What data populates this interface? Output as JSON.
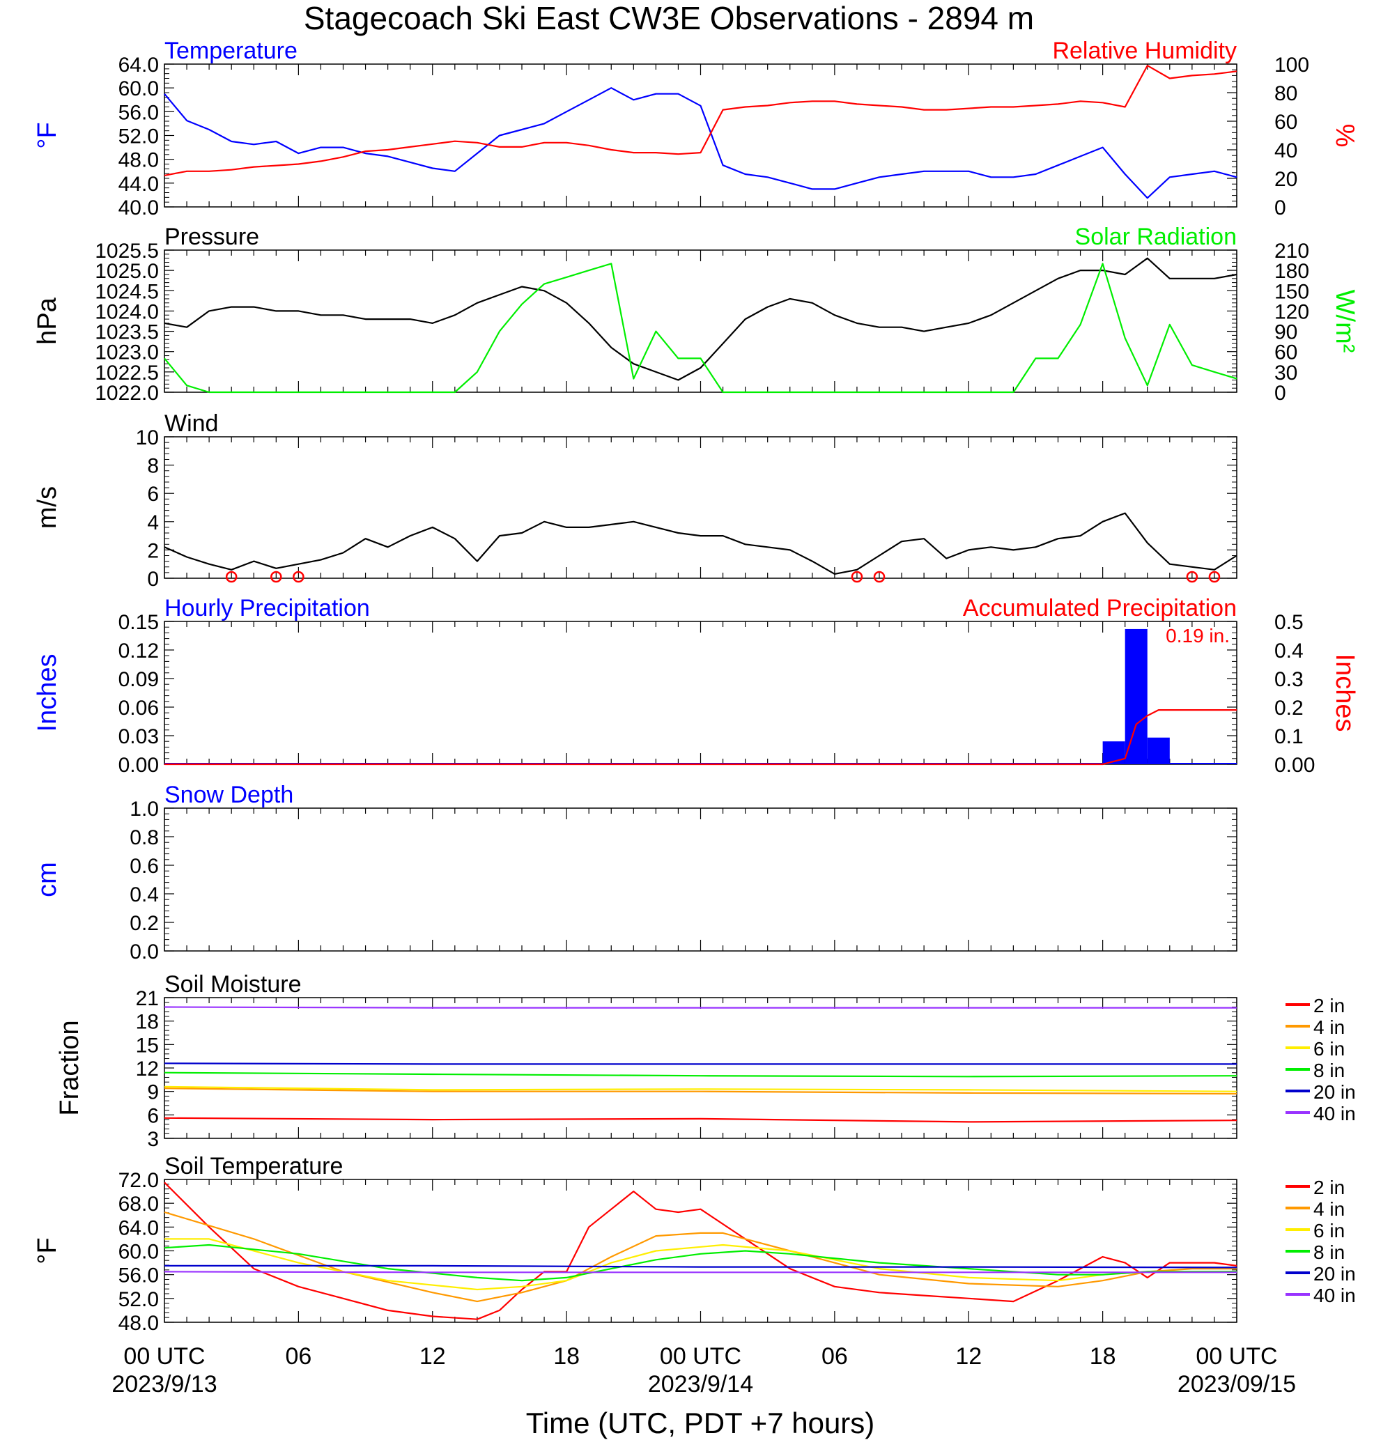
{
  "title": "Stagecoach Ski East CW3E Observations - 2894 m",
  "x_axis": {
    "label": "Time (UTC, PDT +7 hours)",
    "range_hours": [
      0,
      48
    ],
    "ticks": [
      {
        "hour": 0,
        "label": "00 UTC",
        "date": "2023/9/13"
      },
      {
        "hour": 6,
        "label": "06",
        "date": ""
      },
      {
        "hour": 12,
        "label": "12",
        "date": ""
      },
      {
        "hour": 18,
        "label": "18",
        "date": ""
      },
      {
        "hour": 24,
        "label": "00 UTC",
        "date": "2023/9/14"
      },
      {
        "hour": 30,
        "label": "06",
        "date": ""
      },
      {
        "hour": 36,
        "label": "12",
        "date": ""
      },
      {
        "hour": 42,
        "label": "18",
        "date": ""
      },
      {
        "hour": 48,
        "label": "00 UTC",
        "date": "2023/09/15"
      }
    ]
  },
  "colors": {
    "blue": "#0000ff",
    "red": "#ff0000",
    "green": "#00ee00",
    "black": "#000000",
    "orange": "#ff9900",
    "yellow": "#ffee00",
    "darkblue": "#0000cc",
    "purple": "#9933ff"
  },
  "chart_data": [
    {
      "type": "line",
      "title_left": "Temperature",
      "title_right": "Relative Humidity",
      "ylabel_left": "°F",
      "ylabel_right": "%",
      "ylim_left": [
        40,
        64
      ],
      "ylim_right": [
        0,
        100
      ],
      "ticks_left": [
        "40.0",
        "44.0",
        "48.0",
        "52.0",
        "56.0",
        "60.0",
        "64.0"
      ],
      "ticks_right": [
        "0",
        "20",
        "40",
        "60",
        "80",
        "100"
      ],
      "series": [
        {
          "name": "Temperature",
          "axis": "left",
          "color": "#0000ff",
          "x": [
            0,
            1,
            2,
            3,
            4,
            5,
            6,
            7,
            8,
            9,
            10,
            11,
            12,
            13,
            14,
            15,
            16,
            17,
            18,
            19,
            20,
            21,
            22,
            23,
            24,
            25,
            26,
            27,
            28,
            29,
            30,
            31,
            32,
            33,
            34,
            35,
            36,
            37,
            38,
            39,
            40,
            41,
            42,
            43,
            44,
            45,
            46,
            47,
            48
          ],
          "y": [
            59,
            54.5,
            53,
            51,
            50.5,
            51,
            49,
            50,
            50,
            49,
            48.5,
            47.5,
            46.5,
            46,
            49,
            52,
            53,
            54,
            56,
            58,
            60,
            58,
            59,
            59,
            57,
            47,
            45.5,
            45,
            44,
            43,
            43,
            44,
            45,
            45.5,
            46,
            46,
            46,
            45,
            45,
            45.5,
            47,
            48.5,
            50,
            45.5,
            41.5,
            45,
            45.5,
            46,
            45
          ]
        },
        {
          "name": "Relative Humidity",
          "axis": "right",
          "color": "#ff0000",
          "x": [
            0,
            1,
            2,
            3,
            4,
            5,
            6,
            7,
            8,
            9,
            10,
            11,
            12,
            13,
            14,
            15,
            16,
            17,
            18,
            19,
            20,
            21,
            22,
            23,
            24,
            25,
            26,
            27,
            28,
            29,
            30,
            31,
            32,
            33,
            34,
            35,
            36,
            37,
            38,
            39,
            40,
            41,
            42,
            43,
            44,
            45,
            46,
            47,
            48
          ],
          "y": [
            22,
            25,
            25,
            26,
            28,
            29,
            30,
            32,
            35,
            39,
            40,
            42,
            44,
            46,
            45,
            42,
            42,
            45,
            45,
            43,
            40,
            38,
            38,
            37,
            38,
            68,
            70,
            71,
            73,
            74,
            74,
            72,
            71,
            70,
            68,
            68,
            69,
            70,
            70,
            71,
            72,
            74,
            73,
            70,
            99,
            90,
            92,
            93,
            95
          ]
        }
      ]
    },
    {
      "type": "line",
      "title_left": "Pressure",
      "title_right": "Solar Radiation",
      "ylabel_left": "hPa",
      "ylabel_right": "W/m²",
      "ylim_left": [
        1022.0,
        1025.5
      ],
      "ylim_right": [
        0,
        210
      ],
      "ticks_left": [
        "1022.0",
        "1022.5",
        "1023.0",
        "1023.5",
        "1024.0",
        "1024.5",
        "1025.0",
        "1025.5"
      ],
      "ticks_right": [
        "0",
        "30",
        "60",
        "90",
        "120",
        "150",
        "180",
        "210"
      ],
      "series": [
        {
          "name": "Pressure",
          "axis": "left",
          "color": "#000000",
          "x": [
            0,
            1,
            2,
            3,
            4,
            5,
            6,
            7,
            8,
            9,
            10,
            11,
            12,
            13,
            14,
            15,
            16,
            17,
            18,
            19,
            20,
            21,
            22,
            23,
            24,
            25,
            26,
            27,
            28,
            29,
            30,
            31,
            32,
            33,
            34,
            35,
            36,
            37,
            38,
            39,
            40,
            41,
            42,
            43,
            44,
            45,
            46,
            47,
            48
          ],
          "y": [
            1023.7,
            1023.6,
            1024.0,
            1024.1,
            1024.1,
            1024.0,
            1024.0,
            1023.9,
            1023.9,
            1023.8,
            1023.8,
            1023.8,
            1023.7,
            1023.9,
            1024.2,
            1024.4,
            1024.6,
            1024.5,
            1024.2,
            1023.7,
            1023.1,
            1022.7,
            1022.5,
            1022.3,
            1022.6,
            1023.2,
            1023.8,
            1024.1,
            1024.3,
            1024.2,
            1023.9,
            1023.7,
            1023.6,
            1023.6,
            1023.5,
            1023.6,
            1023.7,
            1023.9,
            1024.2,
            1024.5,
            1024.8,
            1025.0,
            1025.0,
            1024.9,
            1025.3,
            1024.8,
            1024.8,
            1024.8,
            1024.9
          ]
        },
        {
          "name": "Solar Radiation",
          "axis": "right",
          "color": "#00ee00",
          "x": [
            0,
            1,
            2,
            3,
            4,
            5,
            6,
            7,
            8,
            9,
            10,
            11,
            12,
            13,
            14,
            15,
            16,
            17,
            18,
            19,
            20,
            21,
            22,
            23,
            24,
            25,
            26,
            27,
            28,
            29,
            30,
            31,
            32,
            33,
            34,
            35,
            36,
            37,
            38,
            39,
            40,
            41,
            42,
            43,
            44,
            45,
            46,
            47,
            48
          ],
          "y": [
            50,
            10,
            0,
            0,
            0,
            0,
            0,
            0,
            0,
            0,
            0,
            0,
            0,
            0,
            30,
            90,
            130,
            160,
            170,
            180,
            190,
            20,
            90,
            50,
            50,
            0,
            0,
            0,
            0,
            0,
            0,
            0,
            0,
            0,
            0,
            0,
            0,
            0,
            0,
            50,
            50,
            100,
            190,
            80,
            10,
            100,
            40,
            30,
            20
          ]
        }
      ]
    },
    {
      "type": "line",
      "title_left": "Wind",
      "ylabel_left": "m/s",
      "ylim_left": [
        0,
        10
      ],
      "ticks_left": [
        "0",
        "2",
        "4",
        "6",
        "8",
        "10"
      ],
      "series": [
        {
          "name": "Wind",
          "axis": "left",
          "color": "#000000",
          "x": [
            0,
            1,
            2,
            3,
            4,
            5,
            6,
            7,
            8,
            9,
            10,
            11,
            12,
            13,
            14,
            15,
            16,
            17,
            18,
            19,
            20,
            21,
            22,
            23,
            24,
            25,
            26,
            27,
            28,
            29,
            30,
            31,
            32,
            33,
            34,
            35,
            36,
            37,
            38,
            39,
            40,
            41,
            42,
            43,
            44,
            45,
            46,
            47,
            48
          ],
          "y": [
            2.2,
            1.5,
            1.0,
            0.6,
            1.2,
            0.7,
            1.0,
            1.3,
            1.8,
            2.8,
            2.2,
            3.0,
            3.6,
            2.8,
            1.2,
            3.0,
            3.2,
            4.0,
            3.6,
            3.6,
            3.8,
            4.0,
            3.6,
            3.2,
            3.0,
            3.0,
            2.4,
            2.2,
            2.0,
            1.2,
            0.3,
            0.6,
            1.6,
            2.6,
            2.8,
            1.4,
            2.0,
            2.2,
            2.0,
            2.2,
            2.8,
            3.0,
            4.0,
            4.6,
            2.5,
            1.0,
            0.8,
            0.6,
            1.6
          ]
        }
      ]
    },
    {
      "type": "bar",
      "title_left": "Hourly Precipitation",
      "title_right": "Accumulated Precipitation",
      "ylabel_left": "Inches",
      "ylabel_right": "Inches",
      "ylim_left": [
        0,
        0.15
      ],
      "ylim_right": [
        0,
        0.5
      ],
      "ticks_left": [
        "0.00",
        "0.03",
        "0.06",
        "0.09",
        "0.12",
        "0.15"
      ],
      "ticks_right": [
        "0.00",
        "0.1",
        "0.2",
        "0.3",
        "0.4",
        "0.5"
      ],
      "annotation": "0.19 in.",
      "bars": [
        {
          "hour_start": 42,
          "value": 0.024
        },
        {
          "hour_start": 43,
          "value": 0.142
        },
        {
          "hour_start": 44,
          "value": 0.028
        }
      ],
      "series": [
        {
          "name": "Accumulated Precipitation",
          "axis": "right",
          "color": "#ff0000",
          "x": [
            0,
            42,
            43,
            43.5,
            44,
            44.5,
            48
          ],
          "y": [
            0,
            0,
            0.02,
            0.14,
            0.17,
            0.19,
            0.19
          ]
        }
      ]
    },
    {
      "type": "line",
      "title_left": "Snow Depth",
      "ylabel_left": "cm",
      "ylim_left": [
        0,
        1
      ],
      "ticks_left": [
        "0.0",
        "0.2",
        "0.4",
        "0.6",
        "0.8",
        "1.0"
      ],
      "series": []
    },
    {
      "type": "line",
      "title_left": "Soil Moisture",
      "ylabel_left": "Fraction",
      "ylim_left": [
        3,
        21
      ],
      "ticks_left": [
        "3",
        "6",
        "9",
        "12",
        "15",
        "18",
        "21"
      ],
      "series": [
        {
          "name": "2 in",
          "color": "#ff0000",
          "x": [
            0,
            12,
            24,
            36,
            48
          ],
          "y": [
            5.6,
            5.4,
            5.5,
            5.1,
            5.3
          ]
        },
        {
          "name": "4 in",
          "color": "#ff9900",
          "x": [
            0,
            12,
            24,
            36,
            48
          ],
          "y": [
            9.4,
            9.0,
            9.0,
            8.8,
            8.7
          ]
        },
        {
          "name": "6 in",
          "color": "#ffee00",
          "x": [
            0,
            12,
            24,
            36,
            48
          ],
          "y": [
            9.6,
            9.2,
            9.3,
            9.2,
            9.0
          ]
        },
        {
          "name": "8 in",
          "color": "#00ee00",
          "x": [
            0,
            12,
            24,
            36,
            48
          ],
          "y": [
            11.4,
            11.2,
            11.0,
            10.9,
            11.0
          ]
        },
        {
          "name": "20 in",
          "color": "#0000cc",
          "x": [
            0,
            12,
            24,
            36,
            48
          ],
          "y": [
            12.6,
            12.5,
            12.5,
            12.5,
            12.5
          ]
        },
        {
          "name": "40 in",
          "color": "#9933ff",
          "x": [
            0,
            12,
            24,
            36,
            48
          ],
          "y": [
            19.8,
            19.7,
            19.7,
            19.7,
            19.7
          ]
        }
      ]
    },
    {
      "type": "line",
      "title_left": "Soil Temperature",
      "ylabel_left": "°F",
      "ylim_left": [
        48,
        72
      ],
      "ticks_left": [
        "48.0",
        "52.0",
        "56.0",
        "60.0",
        "64.0",
        "68.0",
        "72.0"
      ],
      "series": [
        {
          "name": "2 in",
          "color": "#ff0000",
          "x": [
            0,
            2,
            4,
            6,
            8,
            10,
            12,
            14,
            15,
            16,
            17,
            18,
            19,
            20,
            21,
            22,
            23,
            24,
            26,
            28,
            30,
            32,
            34,
            36,
            38,
            40,
            42,
            43,
            44,
            45,
            46,
            47,
            48
          ],
          "y": [
            71.5,
            64,
            57,
            54,
            52,
            50,
            49,
            48.5,
            50,
            53.5,
            56.5,
            56.5,
            64,
            67,
            70,
            67,
            66.5,
            67,
            62,
            57,
            54,
            53,
            52.5,
            52,
            51.5,
            55,
            59,
            58,
            55.5,
            58,
            58,
            58,
            57.5
          ]
        },
        {
          "name": "4 in",
          "color": "#ff9900",
          "x": [
            0,
            4,
            8,
            12,
            14,
            16,
            18,
            20,
            22,
            24,
            25,
            28,
            32,
            36,
            40,
            42,
            44,
            46,
            48
          ],
          "y": [
            66.5,
            62,
            56.5,
            53,
            51.5,
            53,
            55,
            59,
            62.5,
            63,
            63,
            60,
            56,
            54.5,
            54,
            55,
            56.5,
            57,
            57
          ]
        },
        {
          "name": "6 in",
          "color": "#ffee00",
          "x": [
            0,
            2,
            6,
            10,
            14,
            16,
            18,
            20,
            22,
            25,
            28,
            32,
            36,
            40,
            42,
            44,
            46,
            48
          ],
          "y": [
            62,
            62,
            58,
            55,
            53.5,
            54,
            55,
            58,
            60,
            61,
            60,
            57,
            55.5,
            55,
            56,
            56.5,
            56.5,
            56.5
          ]
        },
        {
          "name": "8 in",
          "color": "#00ee00",
          "x": [
            0,
            2,
            6,
            10,
            14,
            16,
            18,
            20,
            22,
            24,
            26,
            28,
            32,
            36,
            40,
            42,
            44,
            46,
            48
          ],
          "y": [
            60.5,
            61,
            59.5,
            57,
            55.5,
            55,
            55.5,
            57,
            58.5,
            59.5,
            60,
            59.5,
            58,
            57,
            56,
            56,
            56.5,
            56.5,
            56.5
          ]
        },
        {
          "name": "20 in",
          "color": "#0000cc",
          "x": [
            0,
            12,
            24,
            36,
            48
          ],
          "y": [
            57.5,
            57.5,
            57.3,
            57.3,
            57.2
          ]
        },
        {
          "name": "40 in",
          "color": "#9933ff",
          "x": [
            0,
            12,
            24,
            36,
            48
          ],
          "y": [
            56.5,
            56.4,
            56.4,
            56.4,
            56.4
          ]
        }
      ]
    }
  ],
  "wind_calm": [
    3,
    5,
    6,
    31,
    32,
    46,
    47
  ]
}
